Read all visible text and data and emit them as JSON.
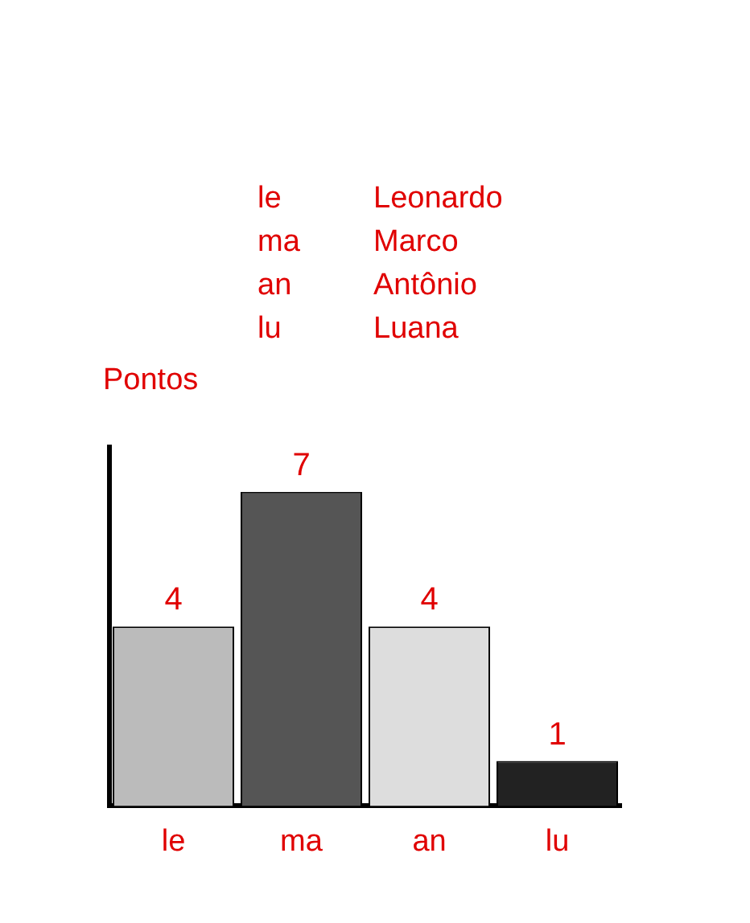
{
  "chart_data": {
    "type": "bar",
    "ylabel": "Pontos",
    "categories": [
      "le",
      "ma",
      "an",
      "lu"
    ],
    "values": [
      4,
      7,
      4,
      1
    ],
    "colors": [
      "#bbbbbb",
      "#555555",
      "#dddddd",
      "#222222"
    ],
    "data_labels": true,
    "grid": false,
    "legend": false,
    "tick_labels": "x",
    "annotations": [
      "le Leonardo",
      "ma Marco",
      "an Antônio",
      "lu Luana"
    ]
  }
}
